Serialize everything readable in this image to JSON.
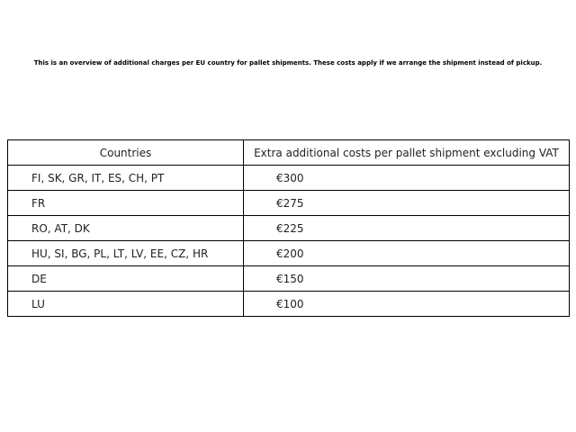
{
  "note": "This is an overview of additional charges per EU country for pallet shipments. These costs apply if we arrange the shipment instead of pickup.",
  "table": {
    "headers": [
      "Countries",
      "Extra additional costs per pallet shipment excluding VAT"
    ],
    "rows": [
      [
        "FI, SK, GR, IT, ES, CH, PT",
        "€300"
      ],
      [
        "FR",
        "€275"
      ],
      [
        "RO, AT, DK",
        "€225"
      ],
      [
        "HU, SI, BG, PL, LT, LV, EE, CZ, HR",
        "€200"
      ],
      [
        "DE",
        "€150"
      ],
      [
        "LU",
        "€100"
      ]
    ]
  }
}
